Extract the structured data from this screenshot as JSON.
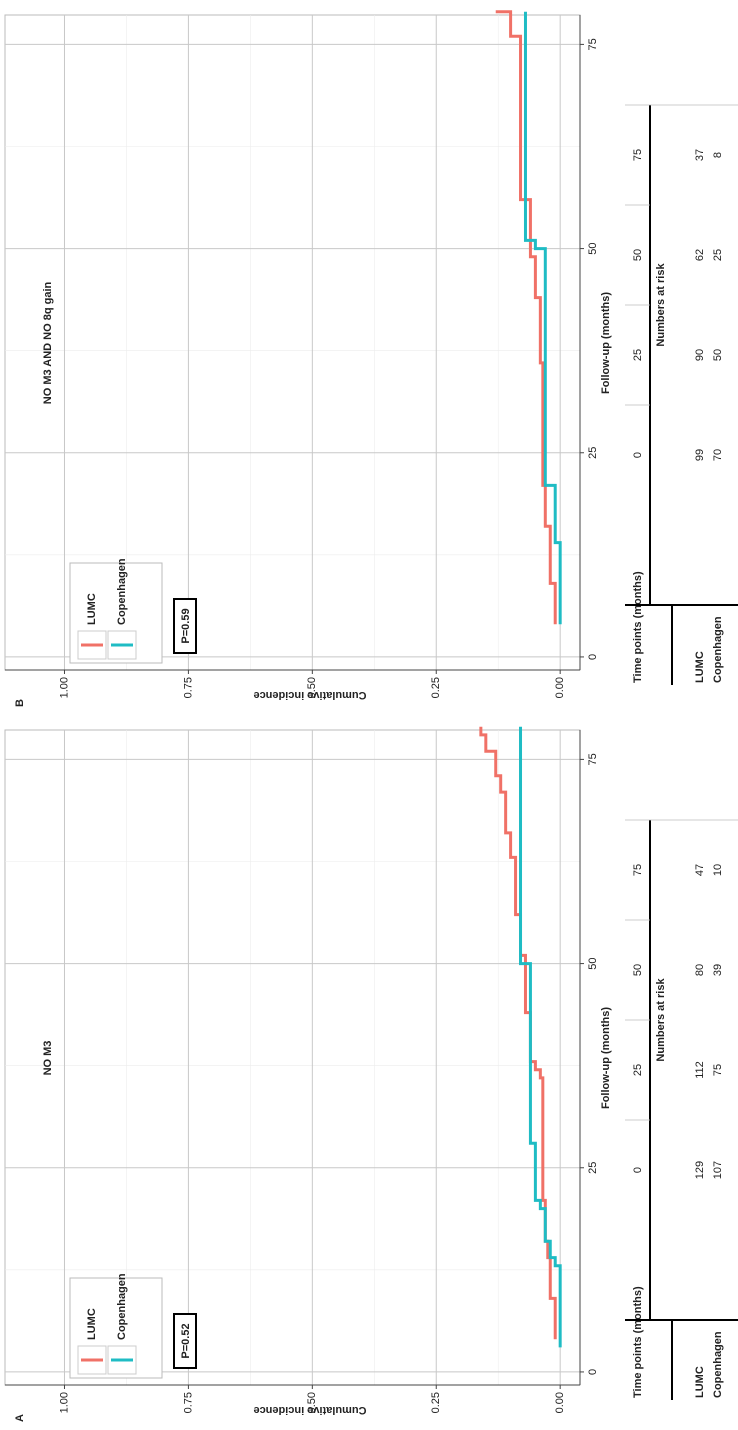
{
  "chart_data": [
    {
      "type": "step",
      "panel": "A",
      "title": "NO M3",
      "xlabel": "Follow-up (months)",
      "ylabel": "Cumulative incidence",
      "annotation": "P=0.52",
      "xlim": [
        -1.6,
        78.6
      ],
      "ylim": [
        -0.04,
        1.12
      ],
      "xticks": [
        0,
        25,
        50,
        75
      ],
      "yticks": [
        {
          "value": 0,
          "label": "0.00"
        },
        {
          "value": 0.25,
          "label": "0.25"
        },
        {
          "value": 0.5,
          "label": "0.50"
        },
        {
          "value": 0.75,
          "label": "0.75"
        },
        {
          "value": 1,
          "label": "1.00"
        }
      ],
      "grid": true,
      "series": [
        {
          "name": "LUMC",
          "color": "#f07167",
          "x": [
            4,
            9,
            14,
            16,
            21,
            36,
            37,
            38,
            44,
            51,
            56,
            63,
            66,
            71,
            73,
            76,
            78,
            79
          ],
          "values": [
            0.01,
            0.02,
            0.025,
            0.03,
            0.035,
            0.04,
            0.05,
            0.06,
            0.07,
            0.08,
            0.09,
            0.1,
            0.11,
            0.12,
            0.13,
            0.15,
            0.16,
            0.16
          ]
        },
        {
          "name": "Copenhagen",
          "color": "#1fbcc4",
          "x": [
            3,
            13,
            14,
            16,
            20,
            21,
            28,
            50,
            79
          ],
          "values": [
            0,
            0.01,
            0.02,
            0.03,
            0.04,
            0.05,
            0.06,
            0.08,
            0.08
          ]
        }
      ],
      "risk_table": {
        "header": "Time points (months)",
        "subheader": "Numbers at risk",
        "times": [
          0,
          25,
          50,
          75
        ],
        "rows": [
          {
            "name": "LUMC",
            "values": [
              129,
              112,
              80,
              47
            ]
          },
          {
            "name": "Copenhagen",
            "values": [
              107,
              75,
              39,
              10
            ]
          }
        ]
      }
    },
    {
      "type": "step",
      "panel": "B",
      "title": "NO M3 AND NO 8q gain",
      "xlabel": "Follow-up (months)",
      "ylabel": "Cumulative incidence",
      "annotation": "P=0.59",
      "xlim": [
        -1.6,
        78.6
      ],
      "ylim": [
        -0.04,
        1.12
      ],
      "xticks": [
        0,
        25,
        50,
        75
      ],
      "yticks": [
        {
          "value": 0,
          "label": "0.00"
        },
        {
          "value": 0.25,
          "label": "0.25"
        },
        {
          "value": 0.5,
          "label": "0.50"
        },
        {
          "value": 0.75,
          "label": "0.75"
        },
        {
          "value": 1,
          "label": "1.00"
        }
      ],
      "grid": true,
      "series": [
        {
          "name": "LUMC",
          "color": "#f07167",
          "x": [
            4,
            9,
            16,
            21,
            36,
            44,
            49,
            56,
            76,
            79
          ],
          "values": [
            0.01,
            0.02,
            0.03,
            0.035,
            0.04,
            0.05,
            0.06,
            0.08,
            0.1,
            0.13
          ]
        },
        {
          "name": "Copenhagen",
          "color": "#1fbcc4",
          "x": [
            4,
            14,
            21,
            50,
            51,
            79
          ],
          "values": [
            0,
            0.01,
            0.03,
            0.05,
            0.07,
            0.07
          ]
        }
      ],
      "risk_table": {
        "header": "Time points (months)",
        "subheader": "Numbers at risk",
        "times": [
          0,
          25,
          50,
          75
        ],
        "rows": [
          {
            "name": "LUMC",
            "values": [
              99,
              90,
              62,
              37
            ]
          },
          {
            "name": "Copenhagen",
            "values": [
              70,
              50,
              25,
              8
            ]
          }
        ]
      }
    }
  ]
}
